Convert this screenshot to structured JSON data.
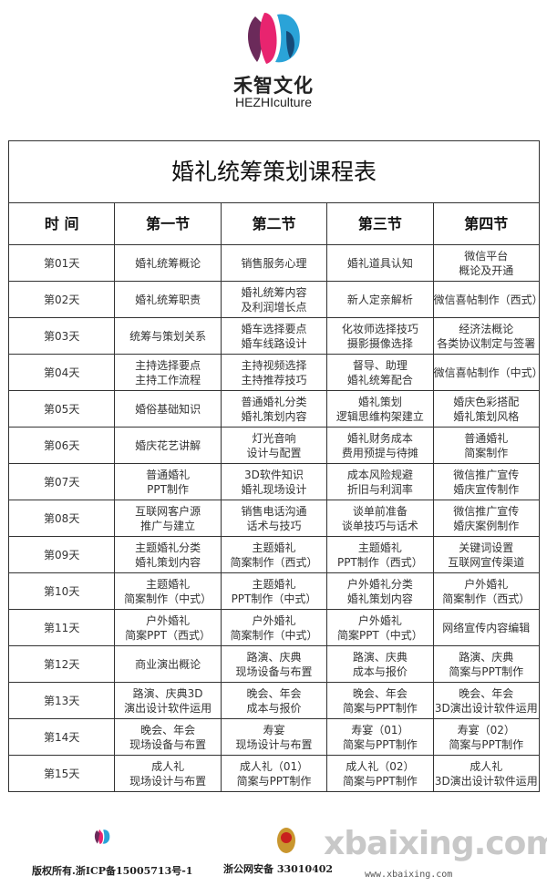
{
  "brand": {
    "name_cn": "禾智文化",
    "name_en": "HEZHIculture"
  },
  "table": {
    "title": "婚礼统筹策划课程表",
    "headers": [
      "时 间",
      "第一节",
      "第二节",
      "第三节",
      "第四节"
    ],
    "rows": [
      [
        "第01天",
        "婚礼统筹概论",
        "销售服务心理",
        "婚礼道具认知",
        "微信平台\n概论及开通"
      ],
      [
        "第02天",
        "婚礼统筹职责",
        "婚礼统筹内容\n及利润增长点",
        "新人定亲解析",
        "微信喜帖制作（西式）"
      ],
      [
        "第03天",
        "统筹与策划关系",
        "婚车选择要点\n婚车线路设计",
        "化妆师选择技巧\n摄影摄像选择",
        "经济法概论\n各类协议制定与签署"
      ],
      [
        "第04天",
        "主持选择要点\n主持工作流程",
        "主持视频选择\n主持推荐技巧",
        "督导、助理\n婚礼统筹配合",
        "微信喜帖制作（中式）"
      ],
      [
        "第05天",
        "婚俗基础知识",
        "普通婚礼分类\n婚礼策划内容",
        "婚礼策划\n逻辑思维构架建立",
        "婚庆色彩搭配\n婚礼策划风格"
      ],
      [
        "第06天",
        "婚庆花艺讲解",
        "灯光音响\n设计与配置",
        "婚礼财务成本\n费用预提与待摊",
        "普通婚礼\n简案制作"
      ],
      [
        "第07天",
        "普通婚礼\nPPT制作",
        "3D软件知识\n婚礼现场设计",
        "成本风险规避\n折旧与利润率",
        "微信推广宣传\n婚庆宣传制作"
      ],
      [
        "第08天",
        "互联网客户源\n推广与建立",
        "销售电话沟通\n话术与技巧",
        "谈单前准备\n谈单技巧与话术",
        "微信推广宣传\n婚庆案例制作"
      ],
      [
        "第09天",
        "主题婚礼分类\n婚礼策划内容",
        "主题婚礼\n简案制作（西式）",
        "主题婚礼\nPPT制作（西式）",
        "关键词设置\n互联网宣传渠道"
      ],
      [
        "第10天",
        "主题婚礼\n简案制作（中式）",
        "主题婚礼\nPPT制作（中式）",
        "户外婚礼分类\n婚礼策划内容",
        "户外婚礼\n简案制作（西式）"
      ],
      [
        "第11天",
        "户外婚礼\n简案PPT（西式）",
        "户外婚礼\n简案制作（中式）",
        "户外婚礼\n简案PPT（中式）",
        "网络宣传内容编辑"
      ],
      [
        "第12天",
        "商业演出概论",
        "路演、庆典\n现场设备与布置",
        "路演、庆典\n成本与报价",
        "路演、庆典\n简案与PPT制作"
      ],
      [
        "第13天",
        "路演、庆典3D\n演出设计软件运用",
        "晚会、年会\n成本与报价",
        "晚会、年会\n简案与PPT制作",
        "晚会、年会\n3D演出设计软件运用"
      ],
      [
        "第14天",
        "晚会、年会\n现场设备与布置",
        "寿宴\n现场设计与布置",
        "寿宴（01）\n简案与PPT制作",
        "寿宴（02）\n简案与PPT制作"
      ],
      [
        "第15天",
        "成人礼\n现场设计与布置",
        "成人礼（01）\n简案与PPT制作",
        "成人礼（02）\n简案与PPT制作",
        "成人礼\n3D演出设计软件运用"
      ]
    ]
  },
  "footer": {
    "copyright": "版权所有.浙ICP备15005713号-1",
    "police": "浙公网安备 33010402",
    "watermark": "xbaixing.com",
    "watermark_url": "www.xbaixing.com"
  }
}
